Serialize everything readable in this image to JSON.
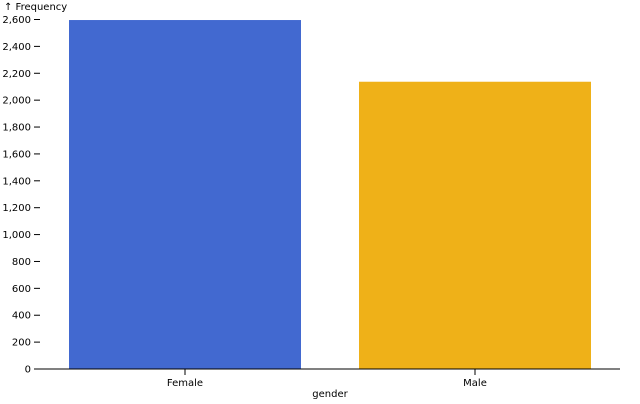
{
  "chart_data": {
    "type": "bar",
    "title": "",
    "xlabel": "gender",
    "ylabel": "↑ Frequency",
    "categories": [
      "Female",
      "Male"
    ],
    "values": [
      2596,
      2137
    ],
    "colors": [
      "#4269d0",
      "#efb118"
    ],
    "ylim": [
      0,
      2600
    ],
    "yticks": [
      0,
      200,
      400,
      600,
      800,
      1000,
      1200,
      1400,
      1600,
      1800,
      2000,
      2200,
      2400,
      2600
    ],
    "ytick_labels": [
      "0",
      "200",
      "400",
      "600",
      "800",
      "1,000",
      "1,200",
      "1,400",
      "1,600",
      "1,800",
      "2,000",
      "2,200",
      "2,400",
      "2,600"
    ],
    "grid": false,
    "legend": "none"
  }
}
